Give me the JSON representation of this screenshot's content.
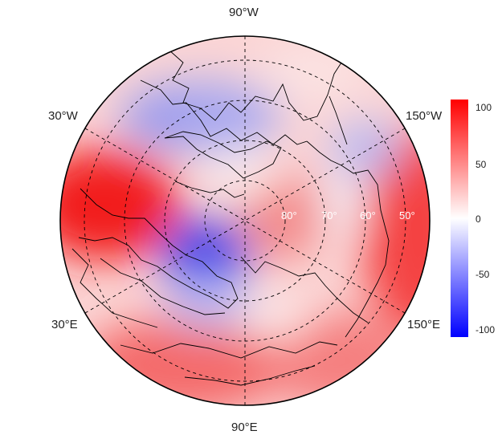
{
  "map": {
    "projection": "north-polar-stereographic",
    "longitude_labels": [
      {
        "id": "lon-90w",
        "text": "90°W"
      },
      {
        "id": "lon-30w",
        "text": "30°W"
      },
      {
        "id": "lon-150w",
        "text": "150°W"
      },
      {
        "id": "lon-30e",
        "text": "30°E"
      },
      {
        "id": "lon-150e",
        "text": "150°E"
      },
      {
        "id": "lon-90e",
        "text": "90°E"
      }
    ],
    "latitude_labels": [
      {
        "id": "lat-80",
        "text": "80°"
      },
      {
        "id": "lat-70",
        "text": "70°"
      },
      {
        "id": "lat-60",
        "text": "60°"
      },
      {
        "id": "lat-50",
        "text": "50°"
      }
    ],
    "graticule": "dashed",
    "field": "anomaly shading (blue negative, red positive)"
  },
  "colorbar": {
    "min": -100,
    "max": 100,
    "ticks": [
      "100",
      "50",
      "0",
      "-50",
      "-100"
    ],
    "colors": {
      "low": "#0000ff",
      "mid": "#ffffff",
      "high": "#ff0000"
    }
  }
}
